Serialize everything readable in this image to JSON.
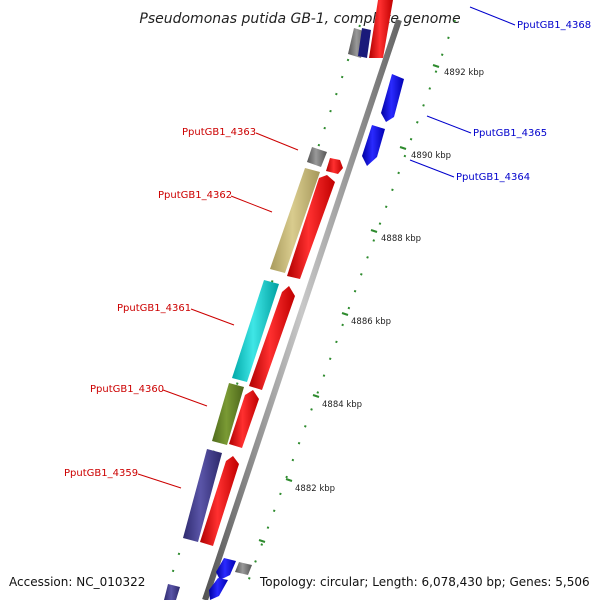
{
  "title": "Pseudomonas putida GB-1, complete genome",
  "accession": "Accession: NC_010322",
  "topology": "Topology: circular; Length: 6,078,430 bp; Genes: 5,506",
  "colors": {
    "backbone": "#8a8a8a",
    "forward_cds": "#ff0000",
    "reverse_cds": "#0000ff",
    "tick": "#2e8b2e",
    "label_forward": "#cc0000",
    "label_reverse": "#0000cc"
  },
  "ticks": [
    "4882 kbp",
    "4884 kbp",
    "4886 kbp",
    "4888 kbp",
    "4890 kbp",
    "4892 kbp"
  ],
  "labels_forward": [
    "PputGB1_4359",
    "PputGB1_4360",
    "PputGB1_4361",
    "PputGB1_4362",
    "PputGB1_4363"
  ],
  "labels_reverse": [
    "PputGB1_4364",
    "PputGB1_4365",
    "PputGB1_4368"
  ]
}
